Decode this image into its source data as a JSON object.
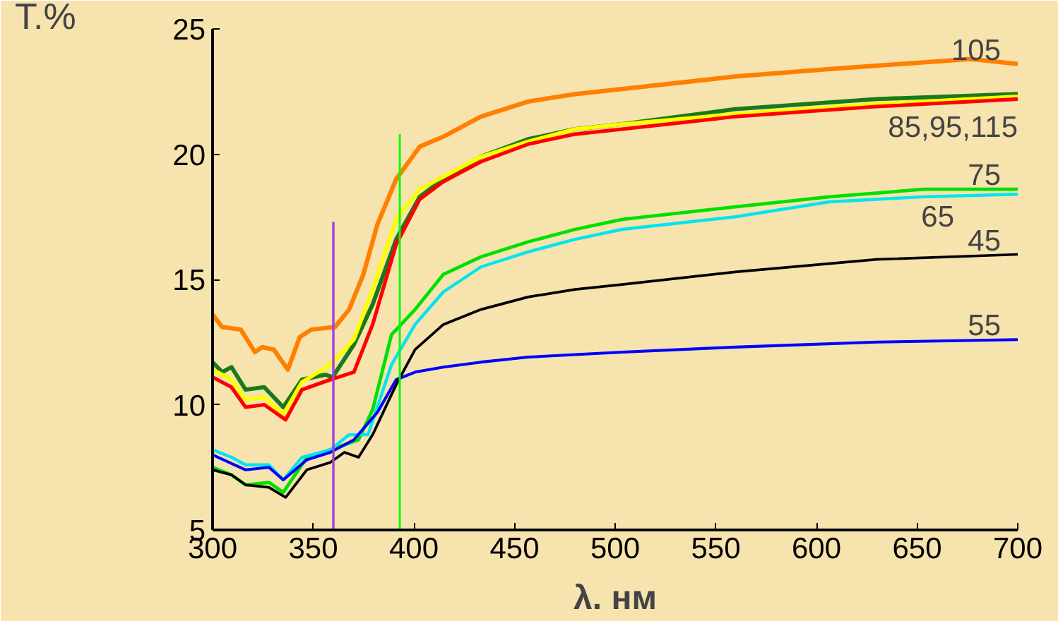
{
  "chart_data": {
    "type": "line",
    "xlabel": "λ. нм",
    "ylabel": "T.%",
    "xlim": [
      300,
      700
    ],
    "xticks": [
      300,
      350,
      400,
      450,
      500,
      550,
      600,
      650,
      700
    ],
    "ylim": [
      5,
      25
    ],
    "yticks": [
      5,
      10,
      15,
      20,
      25
    ],
    "grid": false,
    "line_style": "solid",
    "marker": "none",
    "series": [
      {
        "name": "105",
        "color": "#ff7f00",
        "x": [
          300,
          304.7,
          314,
          321,
          324.6,
          330.4,
          337.4,
          343.3,
          349.1,
          360.8,
          367.8,
          374.9,
          381.9,
          391.2,
          402.9,
          414.6,
          433.3,
          456.7,
          480.1,
          503.5,
          559.6,
          606.4,
          676.6,
          700
        ],
        "values": [
          13.6,
          13.1,
          13.0,
          12.1,
          12.3,
          12.2,
          11.4,
          12.7,
          13.0,
          13.1,
          13.8,
          15.2,
          17.2,
          19.0,
          20.3,
          20.7,
          21.5,
          22.1,
          22.4,
          22.6,
          23.1,
          23.4,
          23.8,
          23.6
        ]
      },
      {
        "color": "#1a7a1a",
        "x": [
          300,
          304.7,
          309.4,
          316.4,
          325.7,
          335.1,
          344.4,
          356.1,
          359.6,
          370.2,
          379.5,
          391.2,
          402.9,
          414.6,
          433.3,
          456.7,
          480.1,
          503.5,
          559.6,
          629.8,
          700
        ],
        "values": [
          11.7,
          11.3,
          11.5,
          10.6,
          10.7,
          9.9,
          11.0,
          11.2,
          11.1,
          12.4,
          14.0,
          16.6,
          18.3,
          19.0,
          19.9,
          20.6,
          21.0,
          21.2,
          21.8,
          22.2,
          22.4
        ]
      },
      {
        "color": "#ffff00",
        "x": [
          300,
          309.4,
          316.4,
          325.7,
          335.1,
          344.4,
          358.5,
          370.2,
          379.5,
          391.2,
          402.9,
          414.6,
          433.3,
          456.7,
          480.1,
          503.5,
          559.6,
          629.8,
          700
        ],
        "values": [
          11.4,
          11.0,
          10.2,
          10.3,
          9.6,
          10.9,
          11.6,
          12.6,
          14.6,
          17.4,
          18.6,
          19.1,
          19.9,
          20.5,
          21.0,
          21.2,
          21.6,
          22.0,
          22.3
        ]
      },
      {
        "color": "#ff0000",
        "x": [
          300,
          309.4,
          316.4,
          325.7,
          336.3,
          344.4,
          358.5,
          370.2,
          379.5,
          391.2,
          402.9,
          414.6,
          433.3,
          456.7,
          480.1,
          503.5,
          559.6,
          629.8,
          700
        ],
        "values": [
          11.1,
          10.7,
          9.9,
          10.0,
          9.4,
          10.6,
          11.0,
          11.3,
          13.2,
          16.4,
          18.2,
          18.9,
          19.7,
          20.4,
          20.8,
          21.0,
          21.5,
          21.9,
          22.2
        ]
      },
      {
        "name": "75",
        "color": "#00e000",
        "x": [
          300,
          309.4,
          316.4,
          328,
          335.1,
          346.8,
          358.5,
          372.5,
          379.5,
          388.9,
          400.6,
          414.6,
          433.3,
          456.7,
          480.1,
          503.5,
          559.6,
          606.4,
          653.2,
          700
        ],
        "values": [
          7.5,
          7.2,
          6.8,
          6.9,
          6.5,
          7.9,
          8.2,
          8.6,
          9.8,
          12.8,
          13.8,
          15.2,
          15.9,
          16.5,
          17.0,
          17.4,
          17.9,
          18.3,
          18.6,
          18.6
        ]
      },
      {
        "name": "65",
        "color": "#00e5ee",
        "x": [
          300,
          309.4,
          316.4,
          328,
          335.1,
          344.4,
          358.5,
          367.8,
          377.2,
          388.9,
          400.6,
          414.6,
          433.3,
          456.7,
          480.1,
          503.5,
          559.6,
          606.4,
          653.2,
          700
        ],
        "values": [
          8.2,
          7.9,
          7.6,
          7.6,
          7.0,
          7.9,
          8.2,
          8.8,
          8.8,
          11.6,
          13.2,
          14.5,
          15.5,
          16.1,
          16.6,
          17.0,
          17.5,
          18.1,
          18.3,
          18.4
        ]
      },
      {
        "name": "55",
        "color": "#0000ff",
        "x": [
          300,
          316.4,
          328,
          335.1,
          346.8,
          358.5,
          370.2,
          381.9,
          391.2,
          400.6,
          414.6,
          433.3,
          456.7,
          480.1,
          503.5,
          559.6,
          629.8,
          700
        ],
        "values": [
          8.0,
          7.4,
          7.5,
          7.0,
          7.8,
          8.1,
          8.6,
          9.7,
          11.0,
          11.3,
          11.5,
          11.7,
          11.9,
          12.0,
          12.1,
          12.3,
          12.5,
          12.6
        ]
      },
      {
        "name": "45",
        "color": "#000000",
        "x": [
          300,
          309.4,
          316.4,
          328,
          336.3,
          346.8,
          358.5,
          365.5,
          372.5,
          379.5,
          391.2,
          400.6,
          414.6,
          433.3,
          456.7,
          480.1,
          503.5,
          559.6,
          629.8,
          700
        ],
        "values": [
          7.4,
          7.2,
          6.8,
          6.7,
          6.3,
          7.4,
          7.7,
          8.1,
          7.9,
          8.8,
          10.8,
          12.2,
          13.2,
          13.8,
          14.3,
          14.6,
          14.8,
          15.3,
          15.8,
          16.0
        ]
      },
      {
        "color": "#a040e0",
        "x": [
          360,
          360
        ],
        "values": [
          5,
          17.3
        ]
      },
      {
        "color": "#00ff00",
        "x": [
          393,
          393
        ],
        "values": [
          5,
          20.8
        ]
      }
    ],
    "annotations": [
      "85,95,115"
    ]
  }
}
